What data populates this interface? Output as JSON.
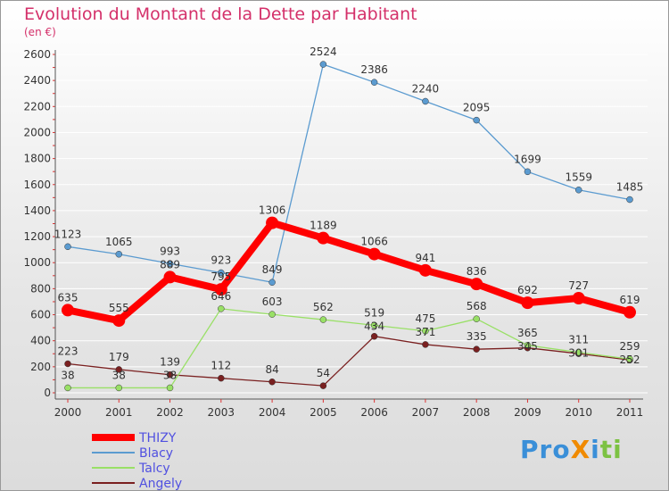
{
  "chart_data": {
    "type": "line",
    "title": "Evolution du Montant de la Dette par Habitant",
    "subtitle": "(en €)",
    "xlabel": "",
    "ylabel": "",
    "ylim": [
      0,
      2600
    ],
    "yticks": [
      0,
      200,
      400,
      600,
      800,
      1000,
      1200,
      1400,
      1600,
      1800,
      2000,
      2200,
      2400,
      2600
    ],
    "categories": [
      "2000",
      "2001",
      "2002",
      "2003",
      "2004",
      "2005",
      "2006",
      "2007",
      "2008",
      "2009",
      "2010",
      "2011"
    ],
    "legend_position": "bottom-left",
    "series": [
      {
        "name": "THIZY",
        "color": "#ff0000",
        "values": [
          635,
          555,
          889,
          795,
          1306,
          1189,
          1066,
          941,
          836,
          692,
          727,
          619
        ]
      },
      {
        "name": "Blacy",
        "color": "#5b9bd0",
        "values": [
          1123,
          1065,
          993,
          923,
          849,
          2524,
          2386,
          2240,
          2095,
          1699,
          1559,
          1485
        ]
      },
      {
        "name": "Talcy",
        "color": "#99e066",
        "values": [
          38,
          38,
          38,
          646,
          603,
          562,
          519,
          475,
          568,
          365,
          311,
          259
        ]
      },
      {
        "name": "Angely",
        "color": "#7a2020",
        "values": [
          223,
          179,
          139,
          112,
          84,
          54,
          434,
          371,
          335,
          345,
          301,
          252
        ]
      }
    ]
  },
  "logo": "ProXiti"
}
